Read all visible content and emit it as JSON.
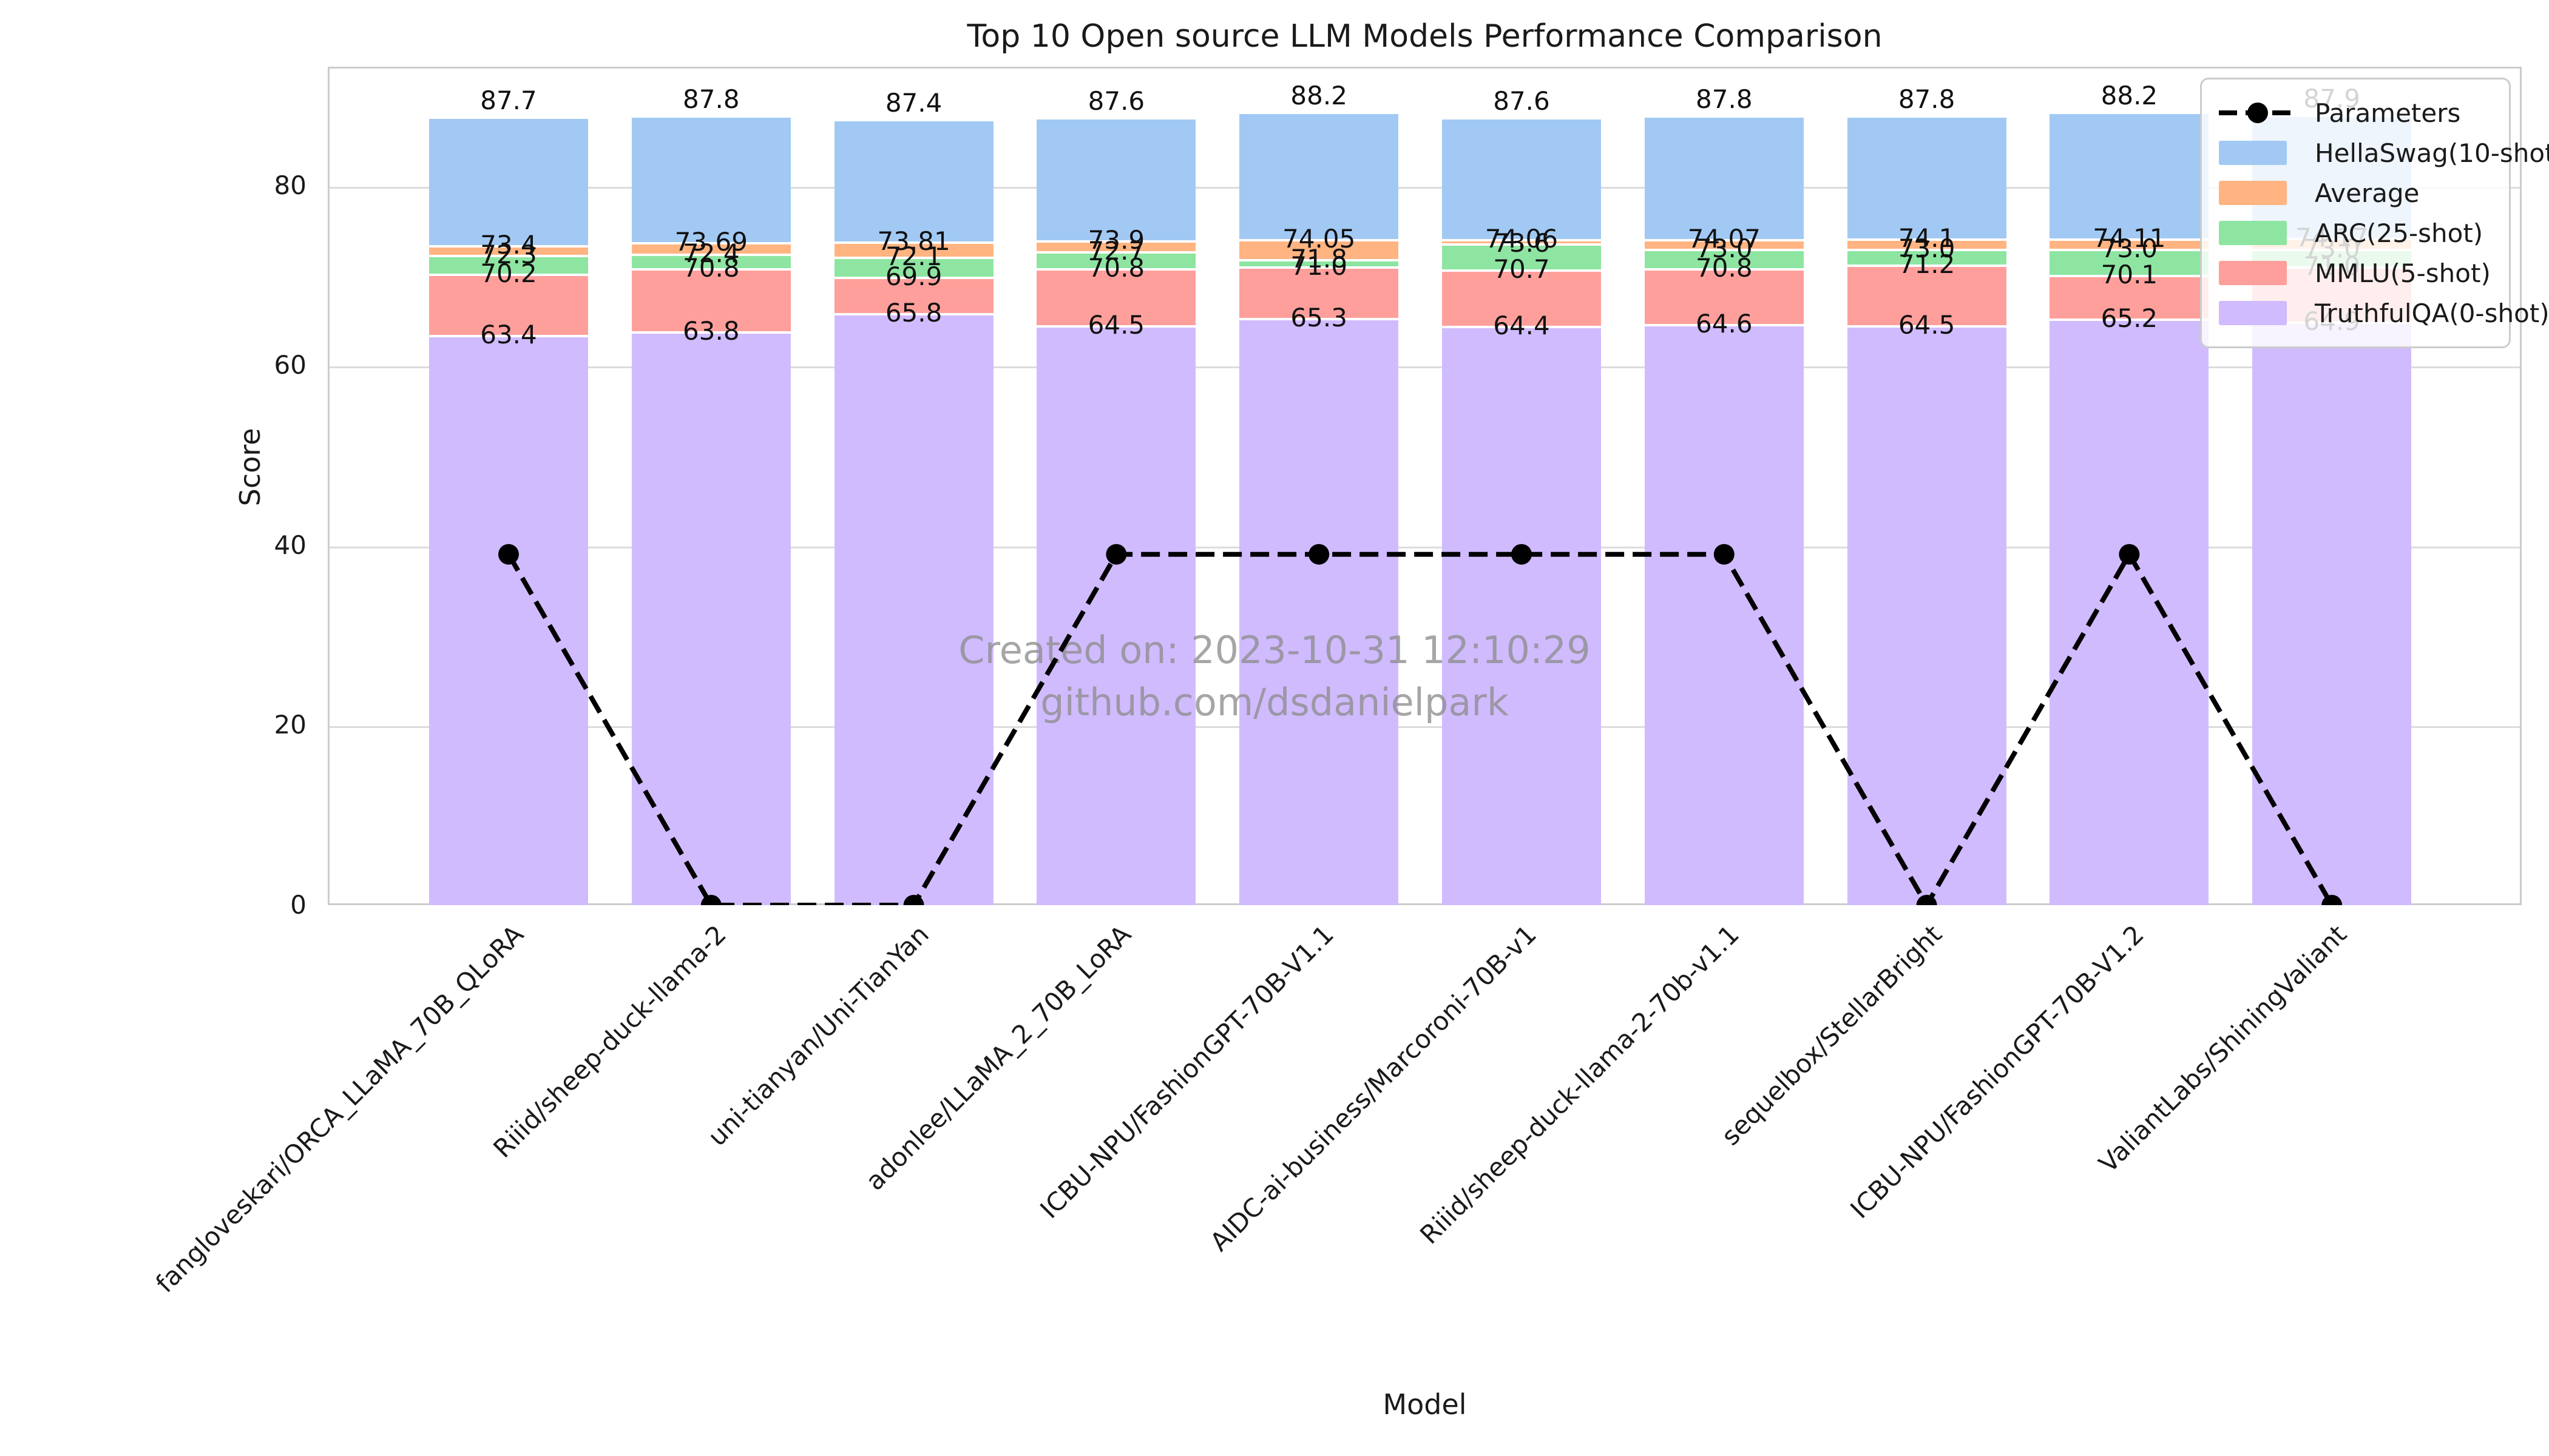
{
  "watermark": {
    "line1": "Created on: 2023-10-31 12:10:29",
    "line2": "github.com/dsdanielpark"
  },
  "chart_data": {
    "type": "bar",
    "title": "Top 10 Open source LLM Models Performance Comparison",
    "xlabel": "Model",
    "ylabel": "Score",
    "ylim": [
      0,
      93.2
    ],
    "yticks": [
      0,
      20,
      40,
      60,
      80
    ],
    "grid": true,
    "legend_position": "upper right",
    "bar_mode": "overlaid",
    "categories": [
      "fangloveskari/ORCA_LLaMA_70B_QLoRA",
      "Riiid/sheep-duck-llama-2",
      "uni-tianyan/Uni-TianYan",
      "adonlee/LLaMA_2_70B_LoRA",
      "ICBU-NPU/FashionGPT-70B-V1.1",
      "AIDC-ai-business/Marcoroni-70B-v1",
      "Riiid/sheep-duck-llama-2-70b-v1.1",
      "sequelbox/StellarBright",
      "ICBU-NPU/FashionGPT-70B-V1.2",
      "ValiantLabs/ShiningValiant"
    ],
    "series": [
      {
        "name": "HellaSwag(10-shot)",
        "color": "#a1c9f4",
        "values": [
          "87.7",
          "87.8",
          "87.4",
          "87.6",
          "88.2",
          "87.6",
          "87.8",
          "87.8",
          "88.2",
          "87.9"
        ]
      },
      {
        "name": "Average",
        "color": "#ffb482",
        "values": [
          "73.4",
          "73.69",
          "73.81",
          "73.9",
          "74.05",
          "74.06",
          "74.07",
          "74.1",
          "74.11",
          "74.17"
        ]
      },
      {
        "name": "ARC(25-shot)",
        "color": "#8de5a1",
        "values": [
          "72.3",
          "72.4",
          "72.1",
          "72.7",
          "71.8",
          "73.6",
          "73.0",
          "73.0",
          "73.0",
          "73.0"
        ]
      },
      {
        "name": "MMLU(5-shot)",
        "color": "#ff9f9b",
        "values": [
          "70.2",
          "70.8",
          "69.9",
          "70.8",
          "71.0",
          "70.7",
          "70.8",
          "71.2",
          "70.1",
          "71.0"
        ]
      },
      {
        "name": "TruthfulQA(0-shot)",
        "color": "#d0bbff",
        "values": [
          "63.4",
          "63.8",
          "65.8",
          "64.5",
          "65.3",
          "64.4",
          "64.6",
          "64.5",
          "65.2",
          "64.9"
        ]
      }
    ],
    "line_series": {
      "name": "Parameters",
      "color": "#000000",
      "linestyle": "dashed",
      "marker": "o",
      "values": [
        39,
        0,
        0,
        39,
        39,
        39,
        39,
        0,
        39,
        0
      ]
    }
  }
}
